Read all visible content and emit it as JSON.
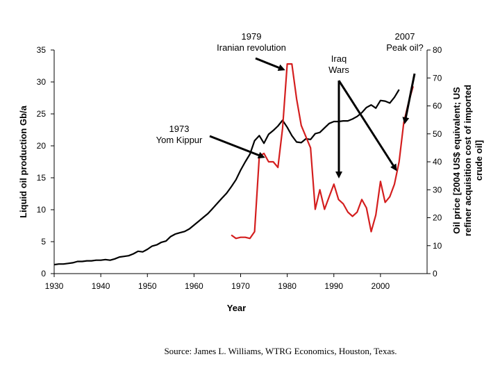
{
  "chart_data": {
    "type": "line",
    "xlabel": "Year",
    "ylabel_left": "Liquid oil production Gb/a",
    "ylabel_right": "Oil price [2004 US$ equivalent; US refiner acquisition cost of imported crude oil]",
    "ylabel_right_lines": [
      "Oil price [2004 US$ equivalent; US",
      "refiner acquisition cost of imported",
      "crude oil]"
    ],
    "xlim": [
      1930,
      2010
    ],
    "ylim_left": [
      0,
      35
    ],
    "ylim_right": [
      0,
      80
    ],
    "x_ticks": [
      1930,
      1940,
      1950,
      1960,
      1970,
      1980,
      1990,
      2000
    ],
    "y_ticks_left": [
      0,
      5,
      10,
      15,
      20,
      25,
      30,
      35
    ],
    "y_ticks_right": [
      0,
      10,
      20,
      30,
      40,
      50,
      60,
      70,
      80
    ],
    "grid": false,
    "legend": "none",
    "series": [
      {
        "axis": "left",
        "color": "#000000",
        "x": [
          1930,
          1931,
          1932,
          1933,
          1934,
          1935,
          1936,
          1937,
          1938,
          1939,
          1940,
          1941,
          1942,
          1943,
          1944,
          1945,
          1946,
          1947,
          1948,
          1949,
          1950,
          1951,
          1952,
          1953,
          1954,
          1955,
          1956,
          1957,
          1958,
          1959,
          1960,
          1961,
          1962,
          1963,
          1964,
          1965,
          1966,
          1967,
          1968,
          1969,
          1970,
          1971,
          1972,
          1973,
          1974,
          1975,
          1976,
          1977,
          1978,
          1979,
          1980,
          1981,
          1982,
          1983,
          1984,
          1985,
          1986,
          1987,
          1988,
          1989,
          1990,
          1991,
          1992,
          1993,
          1994,
          1995,
          1996,
          1997,
          1998,
          1999,
          2000,
          2001,
          2002,
          2003,
          2004
        ],
        "values": [
          1.4,
          1.5,
          1.5,
          1.6,
          1.7,
          1.9,
          1.9,
          2.0,
          2.0,
          2.1,
          2.1,
          2.2,
          2.1,
          2.3,
          2.6,
          2.7,
          2.8,
          3.1,
          3.5,
          3.4,
          3.8,
          4.3,
          4.5,
          4.9,
          5.1,
          5.8,
          6.2,
          6.4,
          6.6,
          7.0,
          7.6,
          8.2,
          8.8,
          9.4,
          10.2,
          11.0,
          11.8,
          12.6,
          13.6,
          14.7,
          16.2,
          17.5,
          18.7,
          20.8,
          21.6,
          20.4,
          21.8,
          22.4,
          23.1,
          24.0,
          22.9,
          21.6,
          20.6,
          20.5,
          21.1,
          21.0,
          21.9,
          22.1,
          22.8,
          23.5,
          23.8,
          23.8,
          23.9,
          23.9,
          24.2,
          24.6,
          25.2,
          26.0,
          26.4,
          25.9,
          27.1,
          27.0,
          26.7,
          27.6,
          28.8
        ]
      },
      {
        "axis": "right",
        "color": "#d41e1e",
        "x": [
          1968,
          1969,
          1970,
          1971,
          1972,
          1973,
          1974,
          1975,
          1976,
          1977,
          1978,
          1979,
          1980,
          1981,
          1982,
          1983,
          1984,
          1985,
          1986,
          1987,
          1988,
          1989,
          1990,
          1991,
          1992,
          1993,
          1994,
          1995,
          1996,
          1997,
          1998,
          1999,
          2000,
          2001,
          2002,
          2003,
          2004,
          2005,
          2006,
          2007
        ],
        "values": [
          13.8,
          12.6,
          13.0,
          13.0,
          12.6,
          15.0,
          42.0,
          43.0,
          40.0,
          40.0,
          38.0,
          52.0,
          75.0,
          75.0,
          62.5,
          53.0,
          49.0,
          45.0,
          23.0,
          30.0,
          23.0,
          27.5,
          32.0,
          26.5,
          25.0,
          22.0,
          20.5,
          22.0,
          26.5,
          23.5,
          15.0,
          21.0,
          33.0,
          25.5,
          27.5,
          32.0,
          40.0,
          54.0,
          61.0,
          67.0
        ]
      }
    ],
    "annotations": [
      {
        "lines": [
          "1979",
          "Iranian revolution"
        ],
        "points_to_year": 1981
      },
      {
        "lines": [
          "1973",
          "Yom Kippur"
        ],
        "points_to_year": 1974
      },
      {
        "lines": [
          "Iraq",
          "Wars"
        ],
        "points_to_year": [
          1990,
          2003
        ]
      },
      {
        "lines": [
          "2007",
          "Peak oil?"
        ],
        "points_to_year": 2005
      }
    ],
    "source": "Source: James L. Williams, WTRG Economics, Houston, Texas."
  }
}
